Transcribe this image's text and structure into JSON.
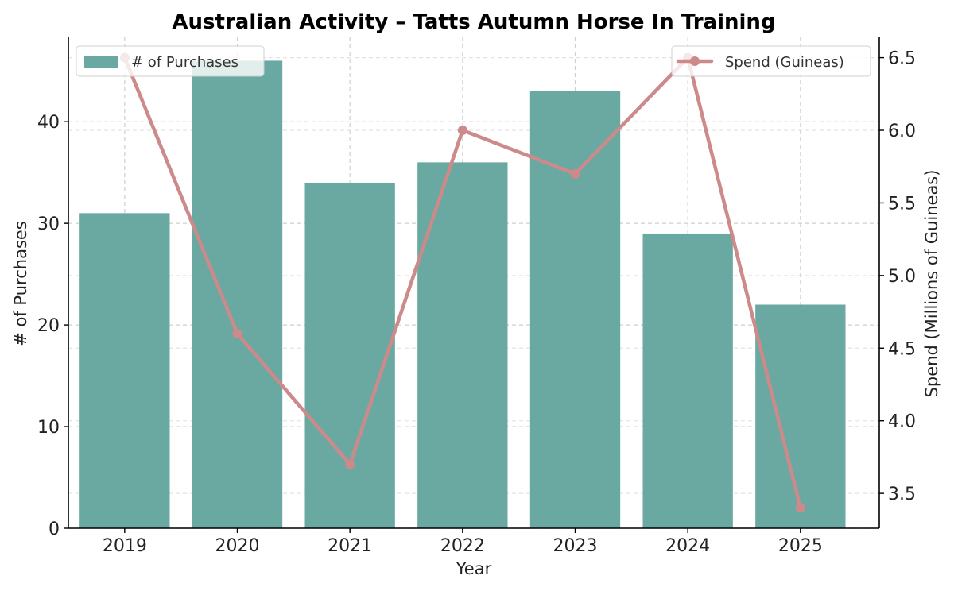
{
  "chart_data": {
    "type": "bar",
    "title": "Australian Activity – Tatts Autumn Horse In Training",
    "xlabel": "Year",
    "ylabel": "# of Purchases",
    "y2label": "Spend (Millions of Guineas)",
    "categories": [
      "2019",
      "2020",
      "2021",
      "2022",
      "2023",
      "2024",
      "2025"
    ],
    "series": [
      {
        "name": "# of Purchases",
        "type": "bar",
        "axis": "left",
        "color": "#69A9A1",
        "values": [
          31,
          46,
          34,
          36,
          43,
          29,
          22
        ]
      },
      {
        "name": "Spend (Guineas)",
        "type": "line",
        "axis": "right",
        "color": "#CC8A8A",
        "values": [
          6.5,
          4.6,
          3.7,
          6.0,
          5.7,
          6.5,
          3.4
        ]
      }
    ],
    "ylim": [
      0,
      48.3
    ],
    "y2lim": [
      3.26,
      6.64
    ],
    "yticks": [
      "0",
      "10",
      "20",
      "30",
      "40"
    ],
    "y2ticks": [
      "3.5",
      "4.0",
      "4.5",
      "5.0",
      "5.5",
      "6.0",
      "6.5"
    ],
    "grid": true,
    "legend_bar_placement": "upper left",
    "legend_line_placement": "upper right"
  }
}
